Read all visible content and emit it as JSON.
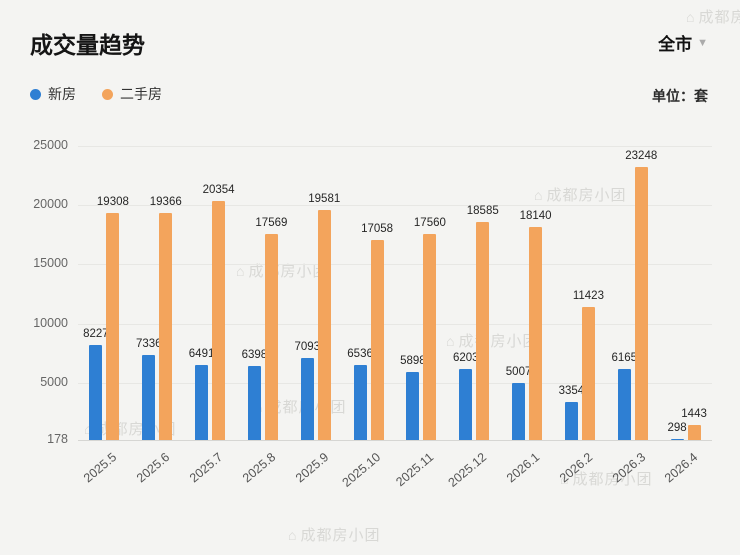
{
  "header": {
    "title": "成交量趋势",
    "region": "全市",
    "unit": "单位：套"
  },
  "legend": [
    {
      "label": "新房",
      "color": "#2e7fd3"
    },
    {
      "label": "二手房",
      "color": "#f3a45c"
    }
  ],
  "watermark": {
    "icon": "house-icon",
    "text": "成都房小团"
  },
  "chart_data": {
    "type": "bar",
    "title": "成交量趋势",
    "categories": [
      "2025.5",
      "2025.6",
      "2025.7",
      "2025.8",
      "2025.9",
      "2025.10",
      "2025.11",
      "2025.12",
      "2026.1",
      "2026.2",
      "2026.3",
      "2026.4"
    ],
    "series": [
      {
        "name": "新房",
        "color": "#2e7fd3",
        "values": [
          8227,
          7336,
          6491,
          6398,
          7093,
          6536,
          5898,
          6203,
          5007,
          3354,
          6165,
          298
        ]
      },
      {
        "name": "二手房",
        "color": "#f3a45c",
        "values": [
          19308,
          19366,
          20354,
          17569,
          19581,
          17058,
          17560,
          18585,
          18140,
          11423,
          23248,
          1443
        ]
      }
    ],
    "y_ticks": [
      178,
      5000,
      10000,
      15000,
      20000,
      25000
    ],
    "ylim": [
      178,
      25000
    ],
    "xlabel": "",
    "ylabel": "",
    "grid": true,
    "legend_position": "top-left",
    "value_labels": true
  }
}
